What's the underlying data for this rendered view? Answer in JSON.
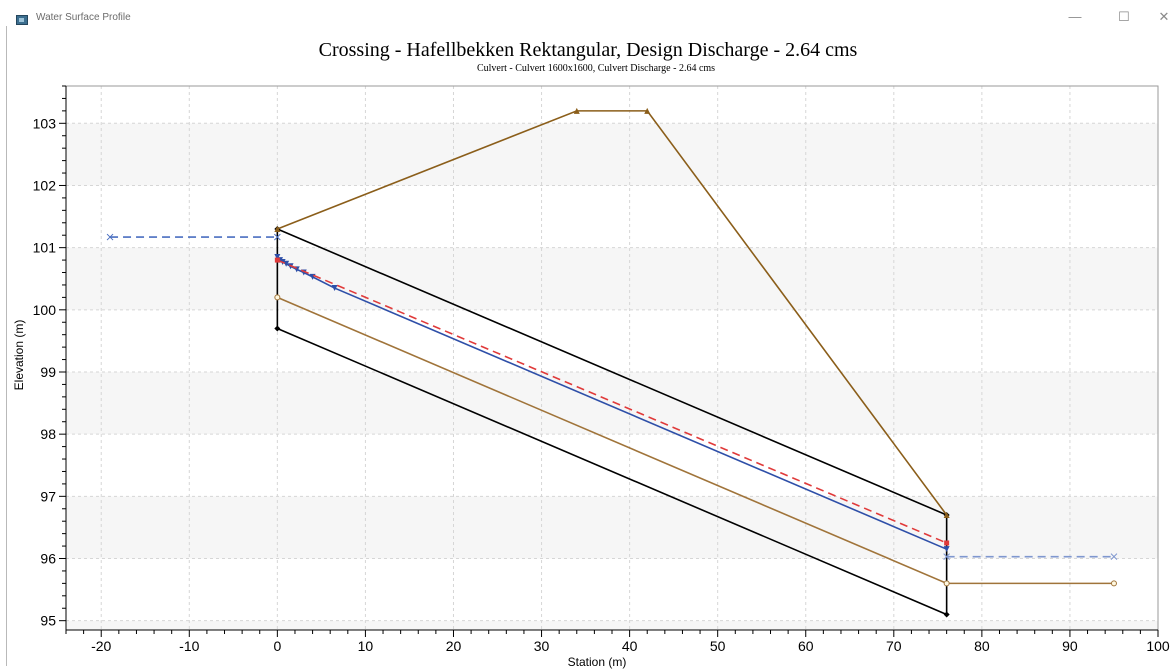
{
  "window": {
    "title": "Water Surface Profile",
    "minimize_glyph": "—",
    "maximize_glyph": "☐",
    "close_glyph": "✕",
    "icon": "app-window-icon"
  },
  "chart_data": {
    "type": "line",
    "title": "Crossing - Hafellbekken Rektangular, Design Discharge - 2.64 cms",
    "subtitle": "Culvert - Culvert 1600x1600, Culvert Discharge - 2.64 cms",
    "xlabel": "Station (m)",
    "ylabel": "Elevation (m)",
    "xlim": [
      -24,
      100
    ],
    "ylim": [
      94.85,
      103.6
    ],
    "x_ticks": [
      -20,
      -10,
      0,
      10,
      20,
      30,
      40,
      50,
      60,
      70,
      80,
      90,
      100
    ],
    "y_ticks": [
      95,
      96,
      97,
      98,
      99,
      100,
      101,
      102,
      103
    ],
    "grid": true,
    "legend": "none",
    "series": [
      {
        "id": "culvert-crown",
        "color": "#000000",
        "marker": "diamond",
        "points": [
          [
            0,
            101.3
          ],
          [
            76,
            96.7
          ]
        ]
      },
      {
        "id": "culvert-invert",
        "color": "#000000",
        "marker": "diamond",
        "points": [
          [
            0,
            99.7
          ],
          [
            76,
            95.1
          ]
        ]
      },
      {
        "id": "culvert-inlet-wall",
        "color": "#000000",
        "marker": "none",
        "points": [
          [
            0,
            99.7
          ],
          [
            0,
            101.3
          ]
        ]
      },
      {
        "id": "culvert-outlet-wall",
        "color": "#000000",
        "marker": "none",
        "points": [
          [
            76,
            95.1
          ],
          [
            76,
            96.7
          ]
        ]
      },
      {
        "id": "roadway-embankment",
        "color": "#8b5e1a",
        "marker": "triangle",
        "points": [
          [
            0,
            101.3
          ],
          [
            34,
            103.2
          ],
          [
            42,
            103.2
          ],
          [
            76,
            96.7
          ]
        ]
      },
      {
        "id": "channel-bottom",
        "color": "#a0743a",
        "marker": "circle",
        "points": [
          [
            0,
            100.2
          ],
          [
            76,
            95.6
          ],
          [
            95,
            95.6
          ]
        ]
      },
      {
        "id": "hydraulic-grade-line",
        "color": "#2e4fa8",
        "marker": "triangle-down",
        "points": [
          [
            0,
            100.85
          ],
          [
            0.3,
            100.8
          ],
          [
            0.6,
            100.77
          ],
          [
            1,
            100.74
          ],
          [
            1.5,
            100.7
          ],
          [
            2.2,
            100.65
          ],
          [
            3,
            100.6
          ],
          [
            4,
            100.53
          ],
          [
            6.5,
            100.35
          ],
          [
            76,
            96.15
          ]
        ]
      },
      {
        "id": "energy-grade-line",
        "color": "#e03a3a",
        "marker": "square",
        "dash": "dashed",
        "points": [
          [
            0,
            100.8
          ],
          [
            76,
            96.25
          ]
        ]
      },
      {
        "id": "headwater",
        "color": "#4a6fc0",
        "marker": "cross",
        "dash": "dashed",
        "points": [
          [
            -19,
            101.17
          ],
          [
            0,
            101.17
          ]
        ]
      },
      {
        "id": "tailwater",
        "color": "#7f97cf",
        "marker": "cross",
        "dash": "dashed",
        "points": [
          [
            76,
            96.03
          ],
          [
            95,
            96.03
          ]
        ]
      }
    ]
  }
}
